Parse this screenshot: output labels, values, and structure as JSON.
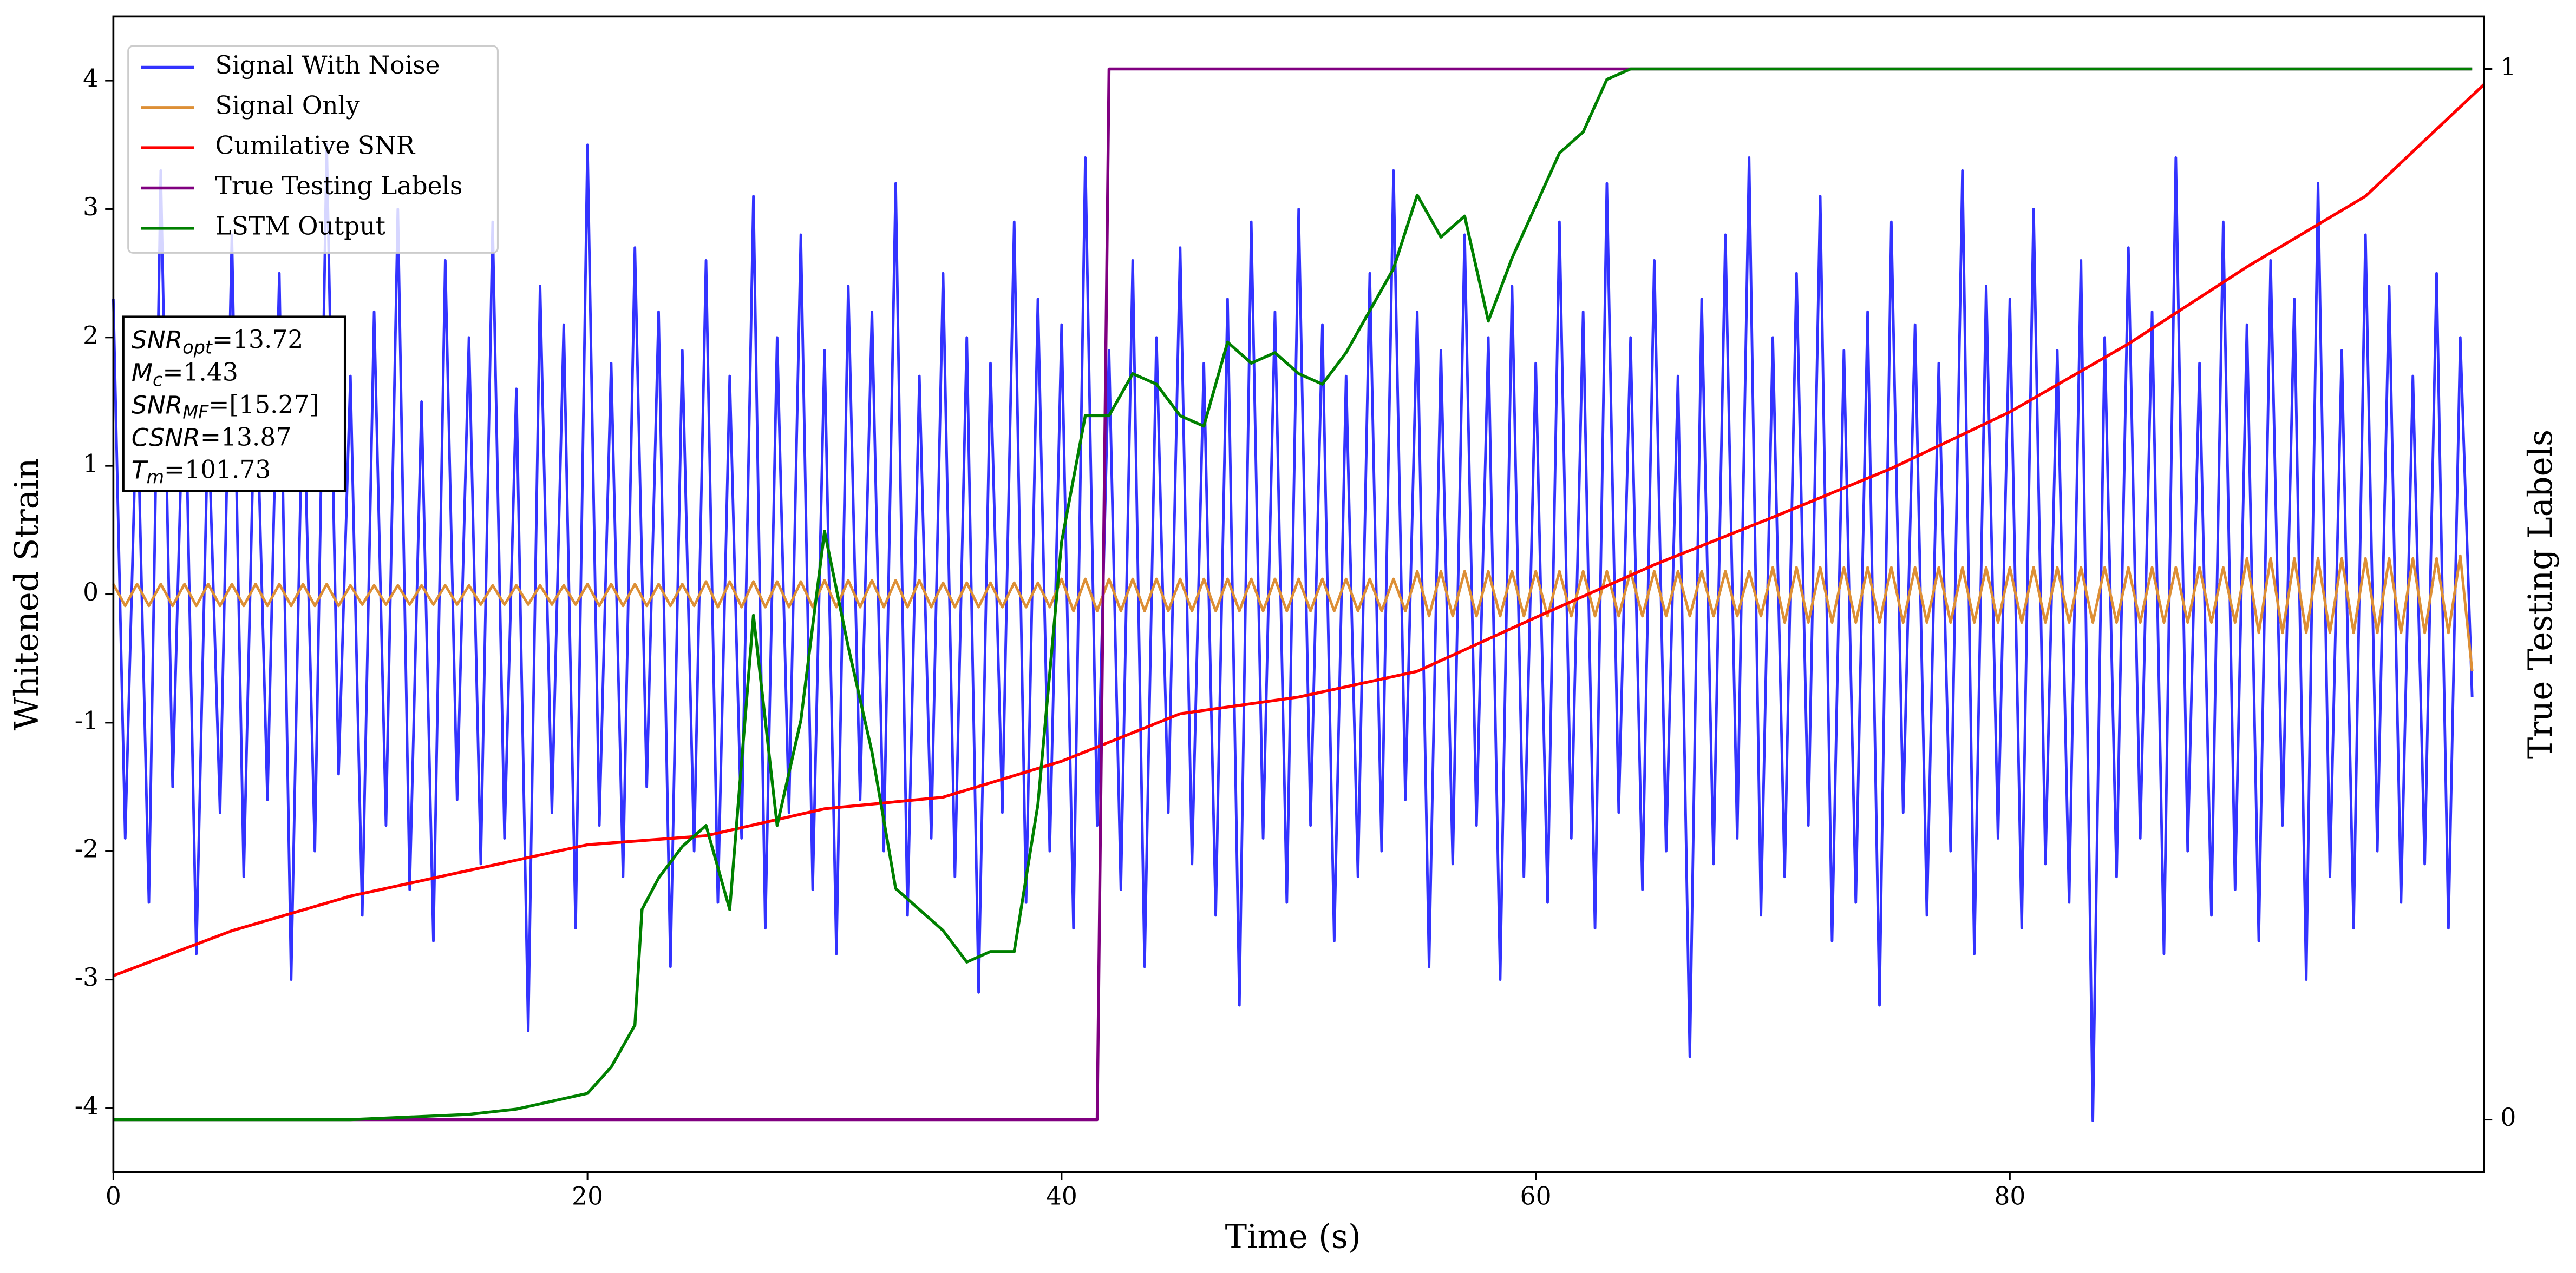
{
  "chart_data": {
    "type": "line",
    "xlabel": "Time (s)",
    "ylabel": "Whitened Strain",
    "y2label": "True Testing Labels",
    "xlim": [
      0,
      100
    ],
    "ylim": [
      -4.5,
      4.5
    ],
    "y2lim": [
      -0.05,
      1.05
    ],
    "xticks": [
      0,
      20,
      40,
      60,
      80
    ],
    "yticks": [
      -4,
      -3,
      -2,
      -1,
      0,
      1,
      2,
      3,
      4
    ],
    "y2ticks": [
      0,
      1
    ],
    "legend": "upper left",
    "x": [
      0,
      0.5,
      1,
      1.5,
      2,
      2.5,
      3,
      3.5,
      4,
      4.5,
      5,
      5.5,
      6,
      6.5,
      7,
      7.5,
      8,
      8.5,
      9,
      9.5,
      10,
      10.5,
      11,
      11.5,
      12,
      12.5,
      13,
      13.5,
      14,
      14.5,
      15,
      15.5,
      16,
      16.5,
      17,
      17.5,
      18,
      18.5,
      19,
      19.5,
      20,
      20.5,
      21,
      21.5,
      22,
      22.5,
      23,
      23.5,
      24,
      24.5,
      25,
      25.5,
      26,
      26.5,
      27,
      27.5,
      28,
      28.5,
      29,
      29.5,
      30,
      30.5,
      31,
      31.5,
      32,
      32.5,
      33,
      33.5,
      34,
      34.5,
      35,
      35.5,
      36,
      36.5,
      37,
      37.5,
      38,
      38.5,
      39,
      39.5,
      40,
      40.5,
      41,
      41.5,
      42,
      42.5,
      43,
      43.5,
      44,
      44.5,
      45,
      45.5,
      46,
      46.5,
      47,
      47.5,
      48,
      48.5,
      49,
      49.5,
      50,
      50.5,
      51,
      51.5,
      52,
      52.5,
      53,
      53.5,
      54,
      54.5,
      55,
      55.5,
      56,
      56.5,
      57,
      57.5,
      58,
      58.5,
      59,
      59.5,
      60,
      60.5,
      61,
      61.5,
      62,
      62.5,
      63,
      63.5,
      64,
      64.5,
      65,
      65.5,
      66,
      66.5,
      67,
      67.5,
      68,
      68.5,
      69,
      69.5,
      70,
      70.5,
      71,
      71.5,
      72,
      72.5,
      73,
      73.5,
      74,
      74.5,
      75,
      75.5,
      76,
      76.5,
      77,
      77.5,
      78,
      78.5,
      79,
      79.5,
      80,
      80.5,
      81,
      81.5,
      82,
      82.5,
      83,
      83.5,
      84,
      84.5,
      85,
      85.5,
      86,
      86.5,
      87,
      87.5,
      88,
      88.5,
      89,
      89.5,
      90,
      90.5,
      91,
      91.5,
      92,
      92.5,
      93,
      93.5,
      94,
      94.5,
      95,
      95.5,
      96,
      96.5,
      97,
      97.5,
      98,
      98.5,
      99,
      99.5
    ],
    "series": [
      {
        "name": "Signal With Noise",
        "color": "#3333ff",
        "values": [
          2.3,
          -1.9,
          1.6,
          -2.4,
          3.3,
          -1.5,
          2.0,
          -2.8,
          1.4,
          -1.7,
          2.8,
          -2.2,
          1.9,
          -1.6,
          2.5,
          -3.0,
          1.8,
          -2.0,
          3.5,
          -1.4,
          1.7,
          -2.5,
          2.2,
          -1.8,
          3.0,
          -2.3,
          1.5,
          -2.7,
          2.6,
          -1.6,
          2.0,
          -2.1,
          2.9,
          -1.9,
          1.6,
          -3.4,
          2.4,
          -1.7,
          2.1,
          -2.6,
          3.5,
          -1.8,
          1.8,
          -2.2,
          2.7,
          -1.5,
          2.2,
          -2.9,
          1.9,
          -2.0,
          2.6,
          -2.4,
          1.7,
          -1.9,
          3.1,
          -2.6,
          2.0,
          -1.7,
          2.8,
          -2.3,
          1.9,
          -2.8,
          2.4,
          -1.6,
          2.2,
          -2.0,
          3.2,
          -2.5,
          1.7,
          -1.9,
          2.5,
          -2.2,
          2.0,
          -3.1,
          1.8,
          -1.7,
          2.9,
          -2.4,
          2.3,
          -2.0,
          2.1,
          -2.6,
          3.4,
          -1.8,
          1.9,
          -2.3,
          2.6,
          -2.9,
          2.0,
          -1.7,
          2.7,
          -2.1,
          1.8,
          -2.5,
          2.3,
          -3.2,
          2.9,
          -1.9,
          2.2,
          -2.4,
          3.0,
          -1.8,
          2.1,
          -2.7,
          1.7,
          -2.2,
          2.5,
          -2.0,
          3.3,
          -1.6,
          2.2,
          -2.9,
          1.9,
          -2.1,
          2.8,
          -1.8,
          2.0,
          -3.0,
          2.4,
          -2.2,
          1.8,
          -2.4,
          2.9,
          -1.9,
          2.2,
          -2.6,
          3.2,
          -1.7,
          2.0,
          -2.3,
          2.6,
          -2.0,
          1.7,
          -3.6,
          2.3,
          -2.1,
          2.8,
          -1.9,
          3.4,
          -2.5,
          2.0,
          -2.2,
          2.5,
          -1.8,
          3.1,
          -2.7,
          1.9,
          -2.4,
          2.2,
          -3.2,
          2.9,
          -1.7,
          2.1,
          -2.5,
          1.8,
          -2.0,
          3.3,
          -2.8,
          2.4,
          -1.9,
          2.3,
          -2.6,
          3.0,
          -2.1,
          1.9,
          -2.4,
          2.6,
          -4.1,
          2.0,
          -2.2,
          2.7,
          -1.9,
          2.2,
          -2.8,
          3.4,
          -2.0,
          1.8,
          -2.5,
          2.9,
          -2.3,
          2.1,
          -2.7,
          2.6,
          -1.8,
          2.3,
          -3.0,
          3.2,
          -2.2,
          1.9,
          -2.6,
          2.8,
          -2.0,
          2.4,
          -2.4,
          1.7,
          -2.1,
          2.5,
          -2.6,
          2.0,
          -0.8
        ]
      },
      {
        "name": "Signal Only",
        "color": "#dd8f35",
        "values": [
          0.08,
          -0.09,
          0.08,
          -0.09,
          0.08,
          -0.09,
          0.08,
          -0.09,
          0.08,
          -0.09,
          0.08,
          -0.09,
          0.08,
          -0.09,
          0.08,
          -0.09,
          0.08,
          -0.09,
          0.08,
          -0.09,
          0.07,
          -0.08,
          0.07,
          -0.08,
          0.07,
          -0.08,
          0.07,
          -0.08,
          0.07,
          -0.08,
          0.07,
          -0.08,
          0.07,
          -0.08,
          0.07,
          -0.08,
          0.07,
          -0.08,
          0.07,
          -0.08,
          0.08,
          -0.09,
          0.08,
          -0.09,
          0.08,
          -0.09,
          0.08,
          -0.09,
          0.08,
          -0.09,
          0.1,
          -0.1,
          0.1,
          -0.1,
          0.1,
          -0.1,
          0.1,
          -0.1,
          0.1,
          -0.1,
          0.11,
          -0.1,
          0.11,
          -0.1,
          0.11,
          -0.1,
          0.11,
          -0.1,
          0.11,
          -0.1,
          0.09,
          -0.1,
          0.09,
          -0.1,
          0.09,
          -0.1,
          0.09,
          -0.1,
          0.09,
          -0.1,
          0.12,
          -0.13,
          0.12,
          -0.13,
          0.12,
          -0.13,
          0.12,
          -0.13,
          0.12,
          -0.13,
          0.12,
          -0.13,
          0.12,
          -0.13,
          0.12,
          -0.13,
          0.12,
          -0.13,
          0.12,
          -0.13,
          0.12,
          -0.13,
          0.12,
          -0.13,
          0.12,
          -0.13,
          0.12,
          -0.13,
          0.12,
          -0.13,
          0.18,
          -0.17,
          0.18,
          -0.17,
          0.18,
          -0.17,
          0.18,
          -0.17,
          0.18,
          -0.17,
          0.18,
          -0.17,
          0.18,
          -0.17,
          0.18,
          -0.17,
          0.18,
          -0.17,
          0.18,
          -0.17,
          0.18,
          -0.17,
          0.18,
          -0.17,
          0.18,
          -0.17,
          0.18,
          -0.17,
          0.18,
          -0.17,
          0.21,
          -0.22,
          0.21,
          -0.22,
          0.21,
          -0.22,
          0.21,
          -0.22,
          0.21,
          -0.22,
          0.21,
          -0.22,
          0.21,
          -0.22,
          0.21,
          -0.22,
          0.21,
          -0.22,
          0.21,
          -0.22,
          0.21,
          -0.22,
          0.21,
          -0.22,
          0.21,
          -0.22,
          0.21,
          -0.22,
          0.21,
          -0.22,
          0.21,
          -0.22,
          0.21,
          -0.22,
          0.21,
          -0.22,
          0.21,
          -0.22,
          0.21,
          -0.22,
          0.28,
          -0.3,
          0.28,
          -0.3,
          0.28,
          -0.3,
          0.28,
          -0.3,
          0.28,
          -0.3,
          0.28,
          -0.3,
          0.28,
          -0.3,
          0.28,
          -0.3,
          0.28,
          -0.3,
          0.3,
          -0.6
        ]
      },
      {
        "name": "Cumilative SNR",
        "color": "#ff0000",
        "x": [
          0,
          5,
          10,
          15,
          20,
          25,
          30,
          35,
          40,
          45,
          50,
          55,
          60,
          65,
          70,
          75,
          80,
          85,
          90,
          95,
          100
        ],
        "values": [
          -2.97,
          -2.62,
          -2.35,
          -2.15,
          -1.95,
          -1.88,
          -1.67,
          -1.58,
          -1.3,
          -0.93,
          -0.8,
          -0.6,
          -0.18,
          0.23,
          0.6,
          0.98,
          1.42,
          1.95,
          2.55,
          3.1,
          3.97
        ]
      },
      {
        "name": "True Testing Labels",
        "color": "#800080",
        "axis": "y2",
        "x": [
          0,
          41.5,
          42,
          99.5
        ],
        "values": [
          0,
          0,
          1,
          1
        ]
      },
      {
        "name": "LSTM Output",
        "color": "#008000",
        "axis": "y2",
        "x": [
          0,
          10,
          15,
          17,
          19,
          20,
          21,
          22,
          22.3,
          23,
          24,
          25,
          26,
          27,
          28,
          29,
          30,
          31,
          32,
          33,
          35,
          36,
          37,
          38,
          39,
          40,
          41,
          42,
          43,
          44,
          45,
          46,
          47,
          48,
          49,
          50,
          51,
          52,
          53,
          54,
          55,
          56,
          57,
          58,
          59,
          60,
          61,
          62,
          63,
          64,
          66,
          70,
          99.5
        ],
        "values": [
          0,
          0,
          0.005,
          0.01,
          0.02,
          0.025,
          0.05,
          0.09,
          0.2,
          0.23,
          0.26,
          0.28,
          0.2,
          0.48,
          0.28,
          0.38,
          0.56,
          0.45,
          0.35,
          0.22,
          0.18,
          0.15,
          0.16,
          0.16,
          0.3,
          0.55,
          0.67,
          0.67,
          0.71,
          0.7,
          0.67,
          0.66,
          0.74,
          0.72,
          0.73,
          0.71,
          0.7,
          0.73,
          0.77,
          0.81,
          0.88,
          0.84,
          0.86,
          0.76,
          0.82,
          0.87,
          0.92,
          0.94,
          0.99,
          1.0,
          1.0,
          1.0,
          1.0
        ]
      }
    ],
    "annotation": [
      {
        "name": "SNR",
        "sub": "opt",
        "text": "=13.72"
      },
      {
        "name": "M",
        "sub": "c",
        "text": "=1.43"
      },
      {
        "name": "SNR",
        "sub": "MF",
        "text": "=[15.27]"
      },
      {
        "name": "CSNR",
        "text": "=13.87"
      },
      {
        "name": "T",
        "sub": "m",
        "text": "=101.73"
      }
    ]
  }
}
